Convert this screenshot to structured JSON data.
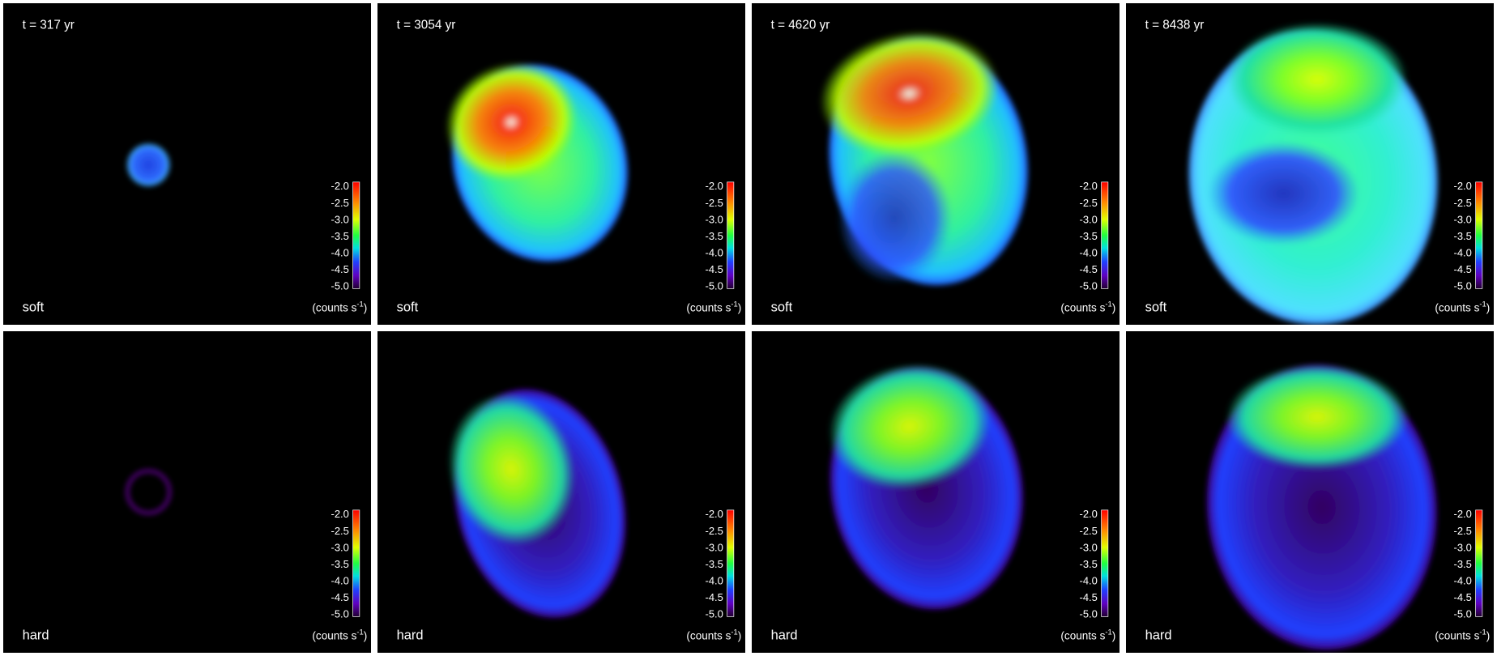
{
  "columns": [
    {
      "time": "t = 317 yr"
    },
    {
      "time": "t = 3054 yr"
    },
    {
      "time": "t = 4620 yr"
    },
    {
      "time": "t = 8438 yr"
    }
  ],
  "rows": [
    {
      "band": "soft"
    },
    {
      "band": "hard"
    }
  ],
  "colorbar": {
    "ticks": [
      "-2.0",
      "-2.5",
      "-3.0",
      "-3.5",
      "-4.0",
      "-4.5",
      "-5.0"
    ],
    "unit": "(counts s",
    "unit_exponent": "-1",
    "unit_close": ")"
  }
}
